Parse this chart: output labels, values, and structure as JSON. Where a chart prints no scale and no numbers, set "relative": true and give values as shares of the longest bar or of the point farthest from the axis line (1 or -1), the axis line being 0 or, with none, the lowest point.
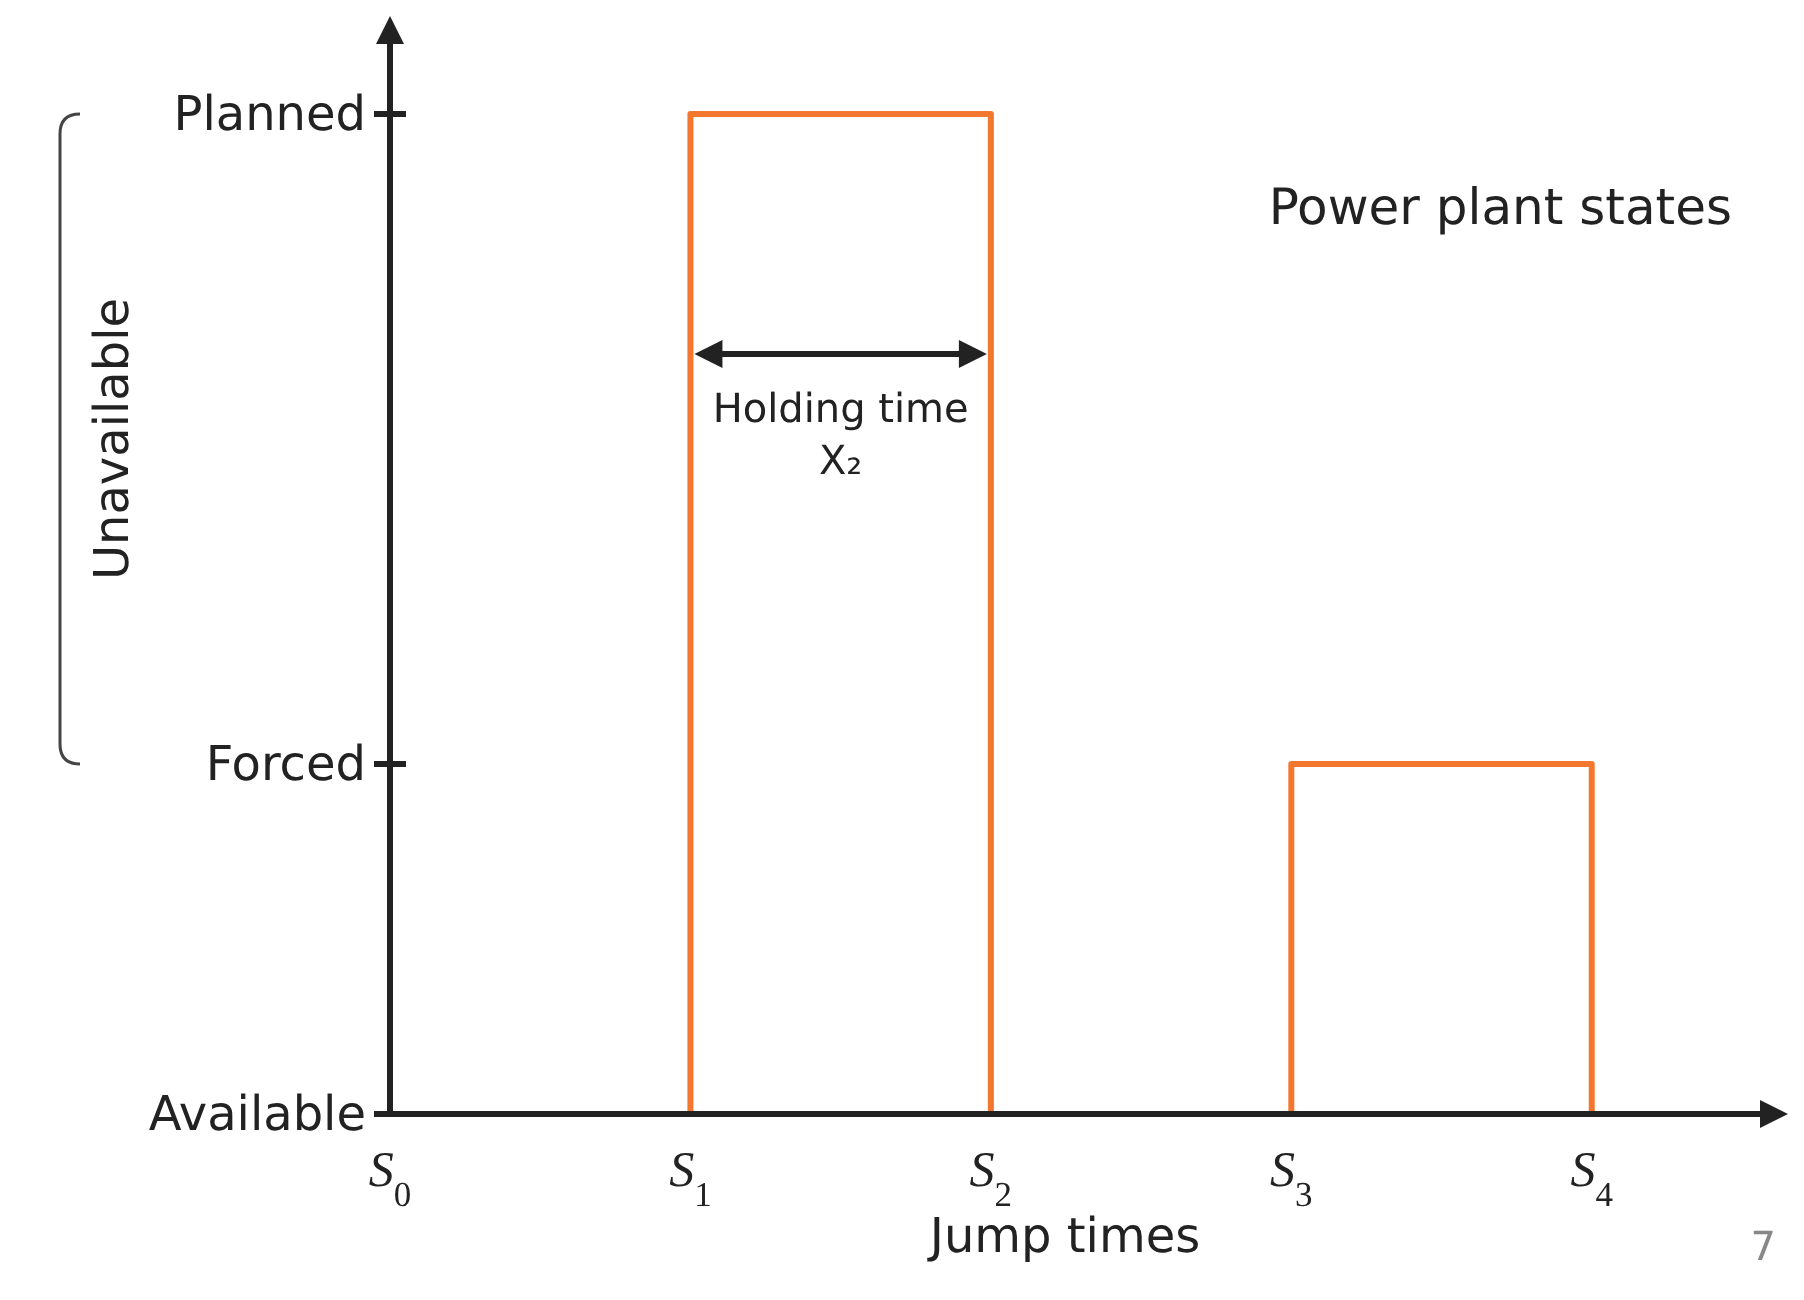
{
  "chart_data": {
    "type": "step",
    "title": "Power plant states",
    "xlabel": "Jump times",
    "relative": true,
    "categories": [
      "S$_{0}$",
      "S$_{1}$",
      "S$_{2}$",
      "S$_{3}$",
      "S$_{4}$"
    ],
    "series": [
      {
        "color": "#f4772f",
        "values": [
          0,
          1,
          0,
          0.35,
          0
        ]
      }
    ],
    "annotations": [
      "Unavailable",
      "Holding time X₂",
      "7",
      "Planned",
      "Forced",
      "Available"
    ],
    "grid": false
  }
}
